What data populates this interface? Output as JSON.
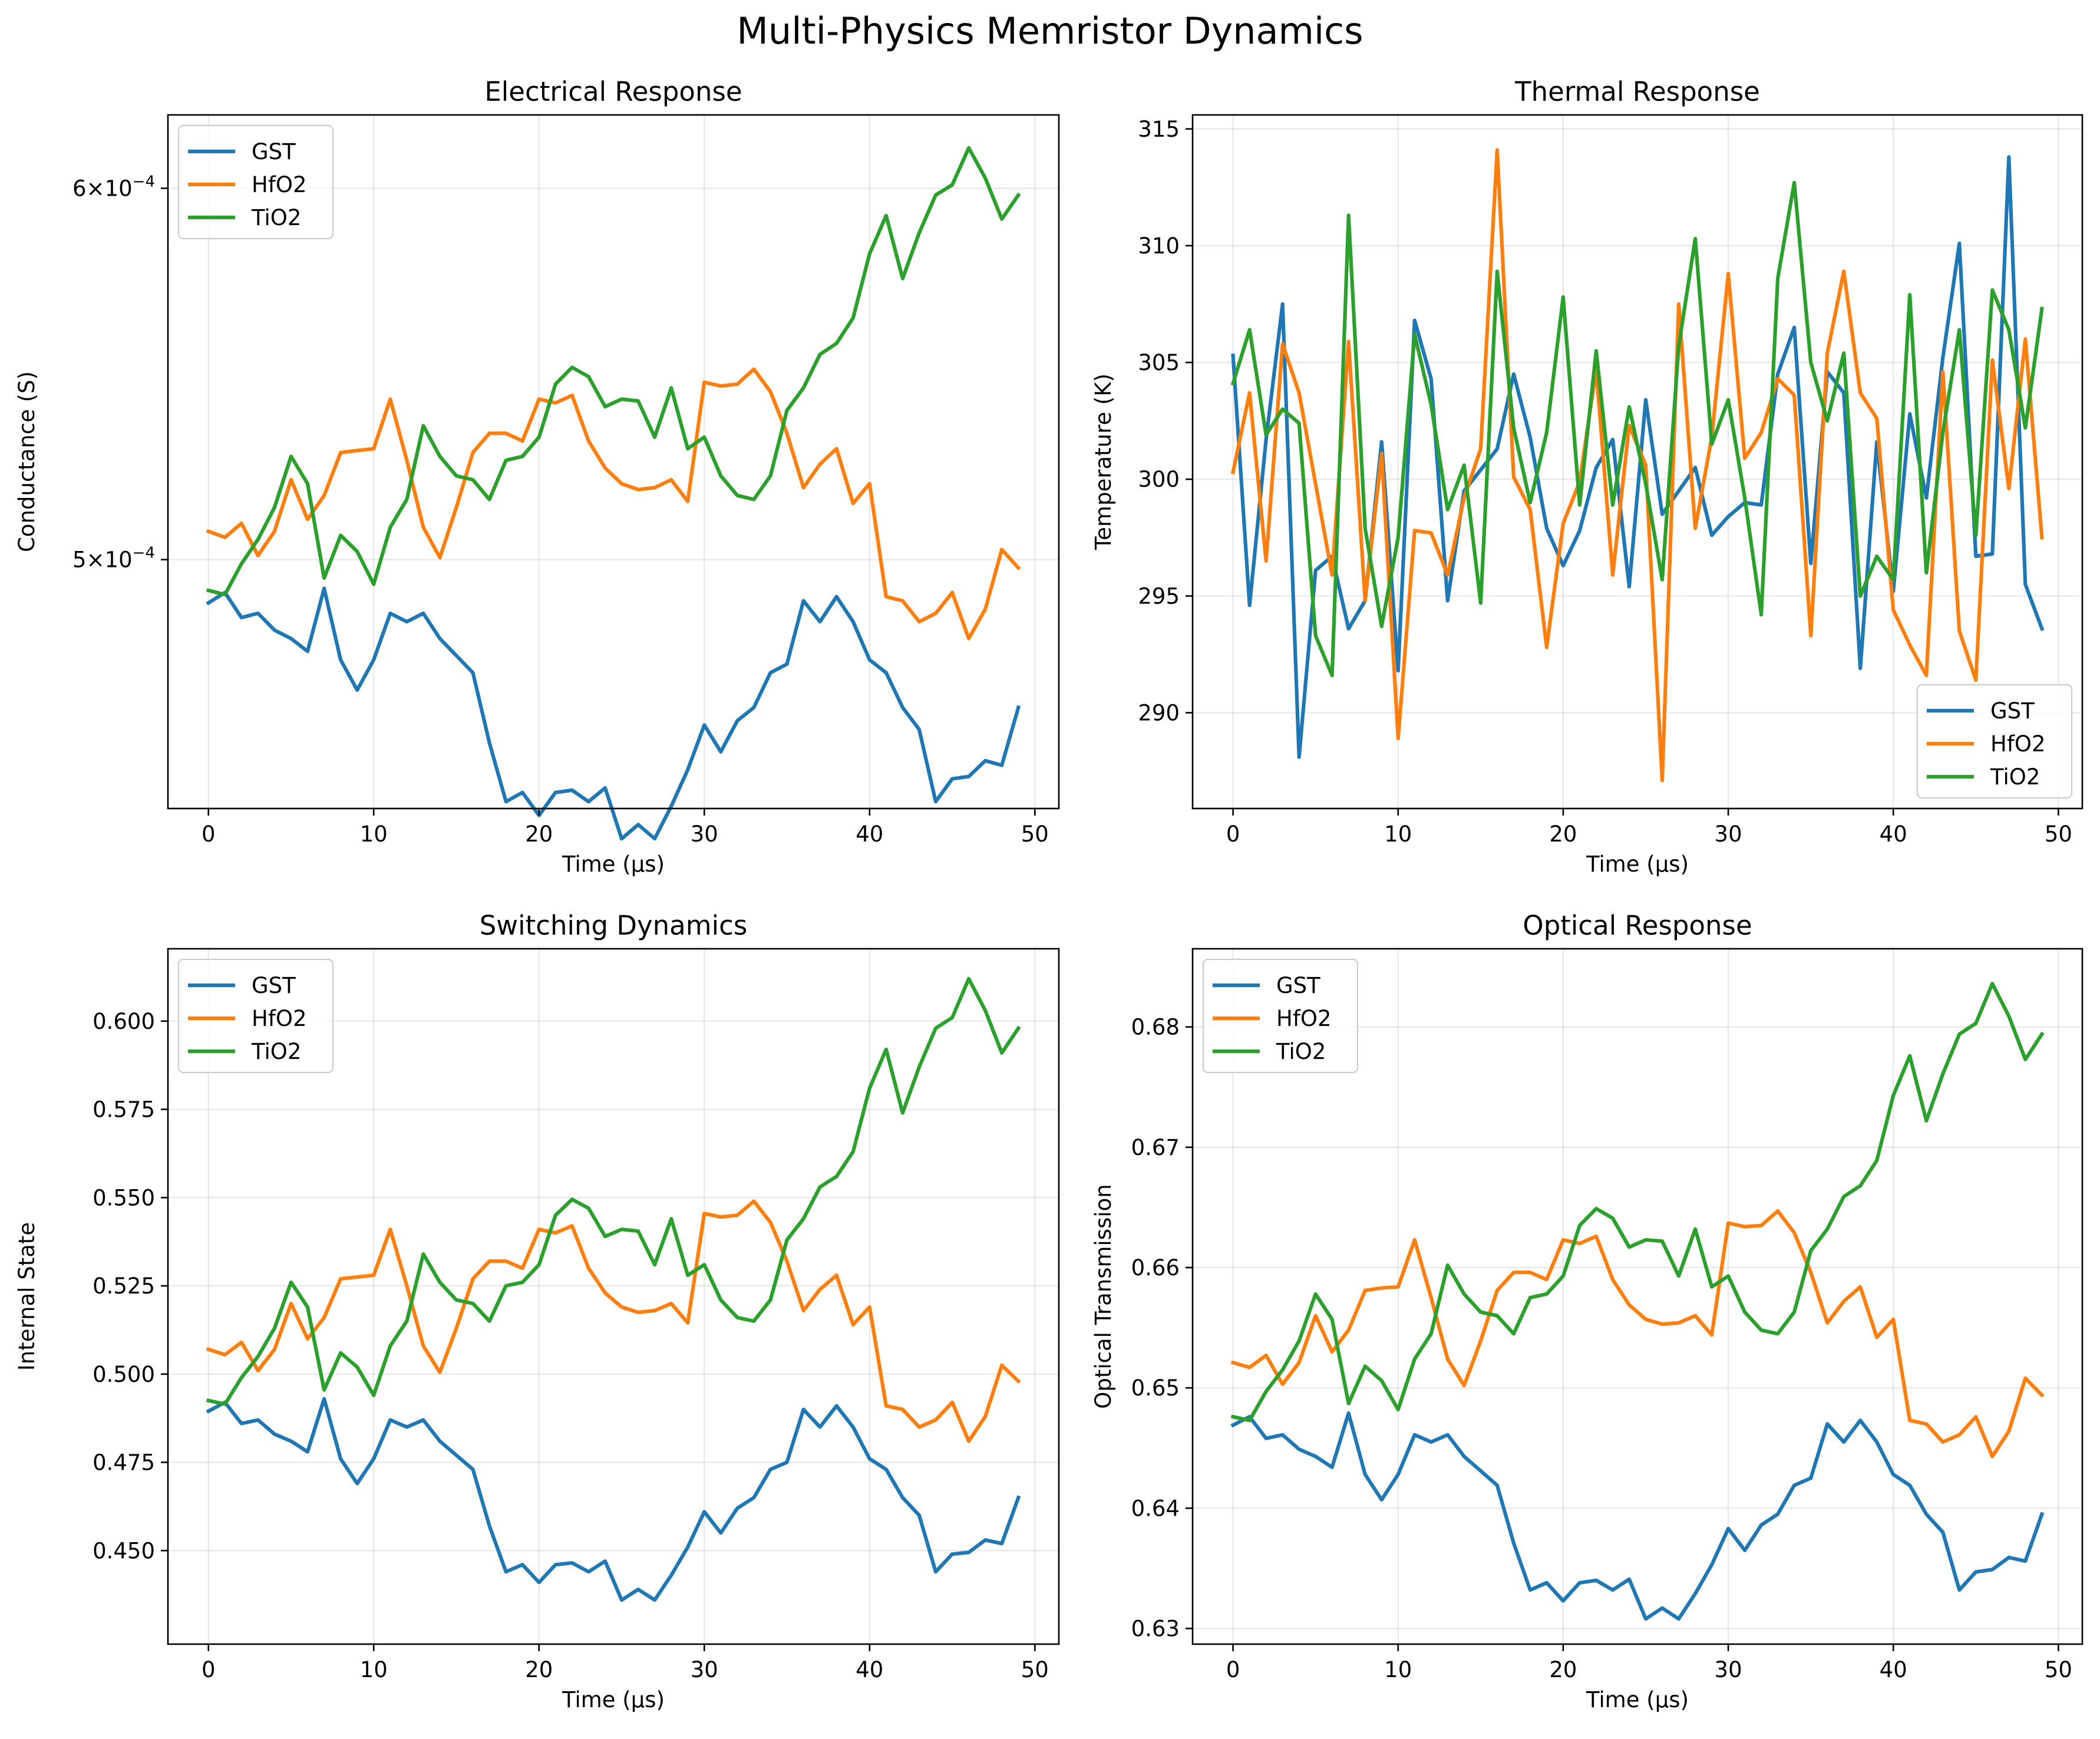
{
  "title": "Multi-Physics Memristor Dynamics",
  "colors": {
    "GST": "#1f77b4",
    "HfO2": "#ff7f0e",
    "TiO2": "#2ca02c"
  },
  "chart_data": [
    {
      "type": "line",
      "title": "Electrical Response",
      "xlabel": "Time (µs)",
      "ylabel": "Conductance (S)",
      "yscale": "log",
      "xlim": [
        -2.45,
        51.45
      ],
      "ylim": [
        0.0004425,
        0.000622
      ],
      "xticks": [
        0,
        10,
        20,
        30,
        40,
        50
      ],
      "yticks": [
        {
          "value": 0.0005,
          "label": [
            "5",
            "10",
            "−4"
          ]
        },
        {
          "value": 0.0006,
          "label": [
            "6",
            "10",
            "−4"
          ]
        }
      ],
      "grid": true,
      "legend": "upper left",
      "x": [
        0,
        1,
        2,
        3,
        4,
        5,
        6,
        7,
        8,
        9,
        10,
        11,
        12,
        13,
        14,
        15,
        16,
        17,
        18,
        19,
        20,
        21,
        22,
        23,
        24,
        25,
        26,
        27,
        28,
        29,
        30,
        31,
        32,
        33,
        34,
        35,
        36,
        37,
        38,
        39,
        40,
        41,
        42,
        43,
        44,
        45,
        46,
        47,
        48,
        49
      ],
      "series": [
        {
          "name": "GST",
          "values": [
            0.0004895,
            0.000492,
            0.000486,
            0.000487,
            0.000483,
            0.000481,
            0.000478,
            0.000493,
            0.000476,
            0.000469,
            0.000476,
            0.000487,
            0.000485,
            0.000487,
            0.000481,
            0.000477,
            0.000473,
            0.000457,
            0.000444,
            0.000446,
            0.000441,
            0.000446,
            0.0004465,
            0.000444,
            0.000447,
            0.000436,
            0.000439,
            0.000436,
            0.000443,
            0.000451,
            0.000461,
            0.000455,
            0.000462,
            0.000465,
            0.000473,
            0.000475,
            0.00049,
            0.000485,
            0.000491,
            0.000485,
            0.000476,
            0.000473,
            0.000465,
            0.00046,
            0.000444,
            0.000449,
            0.0004495,
            0.000453,
            0.000452,
            0.000465
          ]
        },
        {
          "name": "HfO2",
          "values": [
            0.000507,
            0.0005055,
            0.000509,
            0.000501,
            0.000507,
            0.00052,
            0.00051,
            0.000516,
            0.000527,
            0.0005275,
            0.000528,
            0.000541,
            0.000525,
            0.000508,
            0.0005005,
            0.000513,
            0.000527,
            0.000532,
            0.000532,
            0.00053,
            0.000541,
            0.00054,
            0.000542,
            0.00053,
            0.000523,
            0.000519,
            0.0005175,
            0.000518,
            0.00052,
            0.0005145,
            0.0005455,
            0.0005445,
            0.000545,
            0.000549,
            0.000543,
            0.000532,
            0.000518,
            0.000524,
            0.000528,
            0.000514,
            0.000519,
            0.000491,
            0.00049,
            0.000485,
            0.000487,
            0.000492,
            0.000481,
            0.000488,
            0.0005025,
            0.000498
          ]
        },
        {
          "name": "TiO2",
          "values": [
            0.0004925,
            0.0004915,
            0.000499,
            0.000505,
            0.000513,
            0.000526,
            0.000519,
            0.0004955,
            0.000506,
            0.000502,
            0.000494,
            0.000508,
            0.000515,
            0.000534,
            0.000526,
            0.000521,
            0.00052,
            0.000515,
            0.000525,
            0.000526,
            0.000531,
            0.000545,
            0.0005495,
            0.000547,
            0.000539,
            0.000541,
            0.0005405,
            0.000531,
            0.000544,
            0.000528,
            0.000531,
            0.000521,
            0.000516,
            0.000515,
            0.000521,
            0.000538,
            0.000544,
            0.000553,
            0.000556,
            0.000563,
            0.000581,
            0.000592,
            0.000574,
            0.000587,
            0.000598,
            0.000601,
            0.000612,
            0.000603,
            0.000591,
            0.000598
          ]
        }
      ]
    },
    {
      "type": "line",
      "title": "Thermal Response",
      "xlabel": "Time (µs)",
      "ylabel": "Temperature (K)",
      "xlim": [
        -2.45,
        51.45
      ],
      "ylim": [
        285.9,
        315.6
      ],
      "xticks": [
        0,
        10,
        20,
        30,
        40,
        50
      ],
      "yticks": [
        290,
        295,
        300,
        305,
        310,
        315
      ],
      "grid": true,
      "legend": "lower right",
      "x": [
        0,
        1,
        2,
        3,
        4,
        5,
        6,
        7,
        8,
        9,
        10,
        11,
        12,
        13,
        14,
        15,
        16,
        17,
        18,
        19,
        20,
        21,
        22,
        23,
        24,
        25,
        26,
        27,
        28,
        29,
        30,
        31,
        32,
        33,
        34,
        35,
        36,
        37,
        38,
        39,
        40,
        41,
        42,
        43,
        44,
        45,
        46,
        47,
        48,
        49
      ],
      "series": [
        {
          "name": "GST",
          "values": [
            305.3,
            294.6,
            301.7,
            307.5,
            288.1,
            296.1,
            296.7,
            293.6,
            294.8,
            301.6,
            291.8,
            306.8,
            304.3,
            294.8,
            299.5,
            300.4,
            301.3,
            304.5,
            301.8,
            297.9,
            296.3,
            297.8,
            300.5,
            301.7,
            295.4,
            303.4,
            298.5,
            299.5,
            300.5,
            297.6,
            298.4,
            299.0,
            298.9,
            304.5,
            306.5,
            296.4,
            304.6,
            303.7,
            291.9,
            301.6,
            295.2,
            302.8,
            299.2,
            305.2,
            310.1,
            296.7,
            296.8,
            313.8,
            295.5,
            293.6
          ]
        },
        {
          "name": "HfO2",
          "values": [
            300.3,
            303.7,
            296.5,
            305.8,
            303.7,
            299.8,
            295.9,
            305.9,
            294.8,
            301.1,
            288.9,
            297.8,
            297.7,
            295.9,
            299.2,
            301.3,
            314.1,
            300.1,
            298.7,
            292.8,
            298.1,
            299.9,
            304.7,
            295.9,
            302.3,
            300.6,
            287.1,
            307.5,
            297.9,
            301.8,
            308.8,
            300.9,
            302.0,
            304.3,
            303.6,
            293.3,
            305.4,
            308.9,
            303.7,
            302.6,
            294.4,
            292.9,
            291.6,
            304.6,
            293.5,
            291.4,
            305.1,
            299.6,
            306.0,
            297.5
          ]
        },
        {
          "name": "TiO2",
          "values": [
            304.1,
            306.4,
            301.9,
            303.0,
            302.4,
            293.3,
            291.6,
            311.3,
            297.9,
            293.7,
            297.5,
            306.2,
            303.2,
            298.7,
            300.6,
            294.7,
            308.9,
            302.2,
            299.0,
            302.0,
            307.8,
            298.9,
            305.5,
            298.9,
            303.1,
            299.8,
            295.7,
            305.7,
            310.3,
            301.5,
            303.4,
            299.2,
            294.2,
            308.6,
            312.7,
            305.0,
            302.5,
            305.4,
            295.0,
            296.7,
            295.7,
            307.9,
            296.0,
            302.0,
            306.4,
            297.6,
            308.1,
            306.4,
            302.2,
            307.3
          ]
        }
      ]
    },
    {
      "type": "line",
      "title": "Switching Dynamics",
      "xlabel": "Time (µs)",
      "ylabel": "Internal State",
      "xlim": [
        -2.45,
        51.45
      ],
      "ylim": [
        0.4235,
        0.6205
      ],
      "xticks": [
        0,
        10,
        20,
        30,
        40,
        50
      ],
      "yticks": [
        0.45,
        0.475,
        0.5,
        0.525,
        0.55,
        0.575,
        0.6
      ],
      "ytick_labels": [
        "0.450",
        "0.475",
        "0.500",
        "0.525",
        "0.550",
        "0.575",
        "0.600"
      ],
      "grid": true,
      "legend": "upper left",
      "x": [
        0,
        1,
        2,
        3,
        4,
        5,
        6,
        7,
        8,
        9,
        10,
        11,
        12,
        13,
        14,
        15,
        16,
        17,
        18,
        19,
        20,
        21,
        22,
        23,
        24,
        25,
        26,
        27,
        28,
        29,
        30,
        31,
        32,
        33,
        34,
        35,
        36,
        37,
        38,
        39,
        40,
        41,
        42,
        43,
        44,
        45,
        46,
        47,
        48,
        49
      ],
      "series": [
        {
          "name": "GST",
          "values": [
            0.4895,
            0.492,
            0.486,
            0.487,
            0.483,
            0.481,
            0.478,
            0.493,
            0.476,
            0.469,
            0.476,
            0.487,
            0.485,
            0.487,
            0.481,
            0.477,
            0.473,
            0.457,
            0.444,
            0.446,
            0.441,
            0.446,
            0.4465,
            0.444,
            0.447,
            0.436,
            0.439,
            0.436,
            0.443,
            0.451,
            0.461,
            0.455,
            0.462,
            0.465,
            0.473,
            0.475,
            0.49,
            0.485,
            0.491,
            0.485,
            0.476,
            0.473,
            0.465,
            0.46,
            0.444,
            0.449,
            0.4495,
            0.453,
            0.452,
            0.465
          ]
        },
        {
          "name": "HfO2",
          "values": [
            0.507,
            0.5055,
            0.509,
            0.501,
            0.507,
            0.52,
            0.51,
            0.516,
            0.527,
            0.5275,
            0.528,
            0.541,
            0.525,
            0.508,
            0.5005,
            0.513,
            0.527,
            0.532,
            0.532,
            0.53,
            0.541,
            0.54,
            0.542,
            0.53,
            0.523,
            0.519,
            0.5175,
            0.518,
            0.52,
            0.5145,
            0.5455,
            0.5445,
            0.545,
            0.549,
            0.543,
            0.532,
            0.518,
            0.524,
            0.528,
            0.514,
            0.519,
            0.491,
            0.49,
            0.485,
            0.487,
            0.492,
            0.481,
            0.488,
            0.5025,
            0.498
          ]
        },
        {
          "name": "TiO2",
          "values": [
            0.4925,
            0.4915,
            0.499,
            0.505,
            0.513,
            0.526,
            0.519,
            0.4955,
            0.506,
            0.502,
            0.494,
            0.508,
            0.515,
            0.534,
            0.526,
            0.521,
            0.52,
            0.515,
            0.525,
            0.526,
            0.531,
            0.545,
            0.5495,
            0.547,
            0.539,
            0.541,
            0.5405,
            0.531,
            0.544,
            0.528,
            0.531,
            0.521,
            0.516,
            0.515,
            0.521,
            0.538,
            0.544,
            0.553,
            0.556,
            0.563,
            0.581,
            0.592,
            0.574,
            0.587,
            0.598,
            0.601,
            0.612,
            0.603,
            0.591,
            0.598
          ]
        }
      ]
    },
    {
      "type": "line",
      "title": "Optical Response",
      "xlabel": "Time (µs)",
      "ylabel": "Optical Transmission",
      "xlim": [
        -2.45,
        51.45
      ],
      "ylim": [
        0.6287,
        0.6865
      ],
      "xticks": [
        0,
        10,
        20,
        30,
        40,
        50
      ],
      "yticks": [
        0.63,
        0.64,
        0.65,
        0.66,
        0.67,
        0.68
      ],
      "ytick_labels": [
        "0.63",
        "0.64",
        "0.65",
        "0.66",
        "0.67",
        "0.68"
      ],
      "grid": true,
      "legend": "upper left",
      "x": [
        0,
        1,
        2,
        3,
        4,
        5,
        6,
        7,
        8,
        9,
        10,
        11,
        12,
        13,
        14,
        15,
        16,
        17,
        18,
        19,
        20,
        21,
        22,
        23,
        24,
        25,
        26,
        27,
        28,
        29,
        30,
        31,
        32,
        33,
        34,
        35,
        36,
        37,
        38,
        39,
        40,
        41,
        42,
        43,
        44,
        45,
        46,
        47,
        48,
        49
      ],
      "series": [
        {
          "name": "GST",
          "values": [
            0.6469,
            0.6476,
            0.6458,
            0.6461,
            0.6449,
            0.6443,
            0.6434,
            0.6479,
            0.6428,
            0.6407,
            0.6428,
            0.6461,
            0.6455,
            0.6461,
            0.6443,
            0.6431,
            0.6419,
            0.6371,
            0.6332,
            0.6338,
            0.6323,
            0.6338,
            0.634,
            0.6332,
            0.6341,
            0.6308,
            0.6317,
            0.6308,
            0.6329,
            0.6353,
            0.6383,
            0.6365,
            0.6386,
            0.6395,
            0.6419,
            0.6425,
            0.647,
            0.6455,
            0.6473,
            0.6455,
            0.6428,
            0.6419,
            0.6395,
            0.638,
            0.6332,
            0.6347,
            0.6349,
            0.6359,
            0.6356,
            0.6395
          ]
        },
        {
          "name": "HfO2",
          "values": [
            0.6521,
            0.6517,
            0.6527,
            0.6503,
            0.6521,
            0.656,
            0.653,
            0.6548,
            0.6581,
            0.6583,
            0.6584,
            0.6623,
            0.6575,
            0.6524,
            0.6502,
            0.6539,
            0.6581,
            0.6596,
            0.6596,
            0.659,
            0.6623,
            0.662,
            0.6626,
            0.659,
            0.6569,
            0.6557,
            0.6553,
            0.6554,
            0.656,
            0.6544,
            0.6637,
            0.6634,
            0.6635,
            0.6647,
            0.6629,
            0.6596,
            0.6554,
            0.6572,
            0.6584,
            0.6542,
            0.6557,
            0.6473,
            0.647,
            0.6455,
            0.6461,
            0.6476,
            0.6443,
            0.6464,
            0.6508,
            0.6494
          ]
        },
        {
          "name": "TiO2",
          "values": [
            0.6476,
            0.6473,
            0.6497,
            0.6515,
            0.6539,
            0.6578,
            0.6557,
            0.6487,
            0.6518,
            0.6506,
            0.6482,
            0.6524,
            0.6545,
            0.6602,
            0.6578,
            0.6563,
            0.656,
            0.6545,
            0.6575,
            0.6578,
            0.6593,
            0.6635,
            0.6649,
            0.6641,
            0.6617,
            0.6623,
            0.6622,
            0.6593,
            0.6632,
            0.6584,
            0.6593,
            0.6563,
            0.6548,
            0.6545,
            0.6563,
            0.6614,
            0.6632,
            0.6659,
            0.6668,
            0.6689,
            0.6743,
            0.6776,
            0.6722,
            0.6761,
            0.6794,
            0.6803,
            0.6836,
            0.6809,
            0.6773,
            0.6794
          ]
        }
      ]
    }
  ]
}
